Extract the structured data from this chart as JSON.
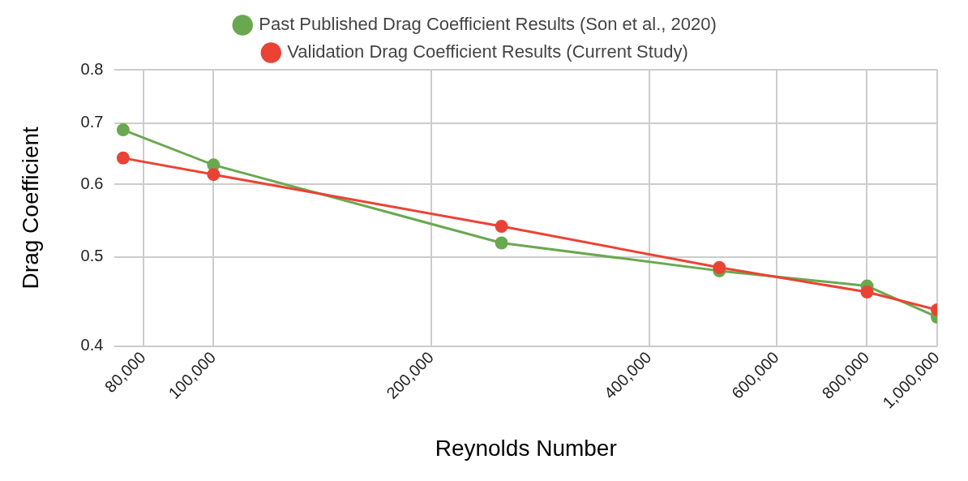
{
  "chart_data": {
    "type": "line",
    "xlabel": "Reynolds Number",
    "ylabel": "Drag Coefficient",
    "x": [
      75000,
      100000,
      250000,
      500000,
      800000,
      1000000
    ],
    "series": [
      {
        "name": "Past Published Drag Coefficient Results (Son et al., 2020)",
        "color": "#6aa84f",
        "values": [
          0.688,
          0.63,
          0.518,
          0.483,
          0.465,
          0.43
        ]
      },
      {
        "name": "Validation Drag Coefficient Results (Current Study)",
        "color": "#ea4335",
        "values": [
          0.641,
          0.615,
          0.54,
          0.487,
          0.458,
          0.438
        ]
      }
    ],
    "log": "xy",
    "xlim": [
      73000,
      1000000
    ],
    "ylim": [
      0.4,
      0.8
    ],
    "xticks": [
      {
        "value": 80000,
        "label": "80,000"
      },
      {
        "value": 100000,
        "label": "100,000"
      },
      {
        "value": 200000,
        "label": "200,000"
      },
      {
        "value": 400000,
        "label": "400,000"
      },
      {
        "value": 600000,
        "label": "600,000"
      },
      {
        "value": 800000,
        "label": "800,000"
      },
      {
        "value": 1000000,
        "label": "1,000,000"
      }
    ],
    "yticks": [
      0.4,
      0.5,
      0.6,
      0.7,
      0.8
    ],
    "grid": true,
    "legend": "top",
    "marker": "circle",
    "line_style": "solid"
  }
}
